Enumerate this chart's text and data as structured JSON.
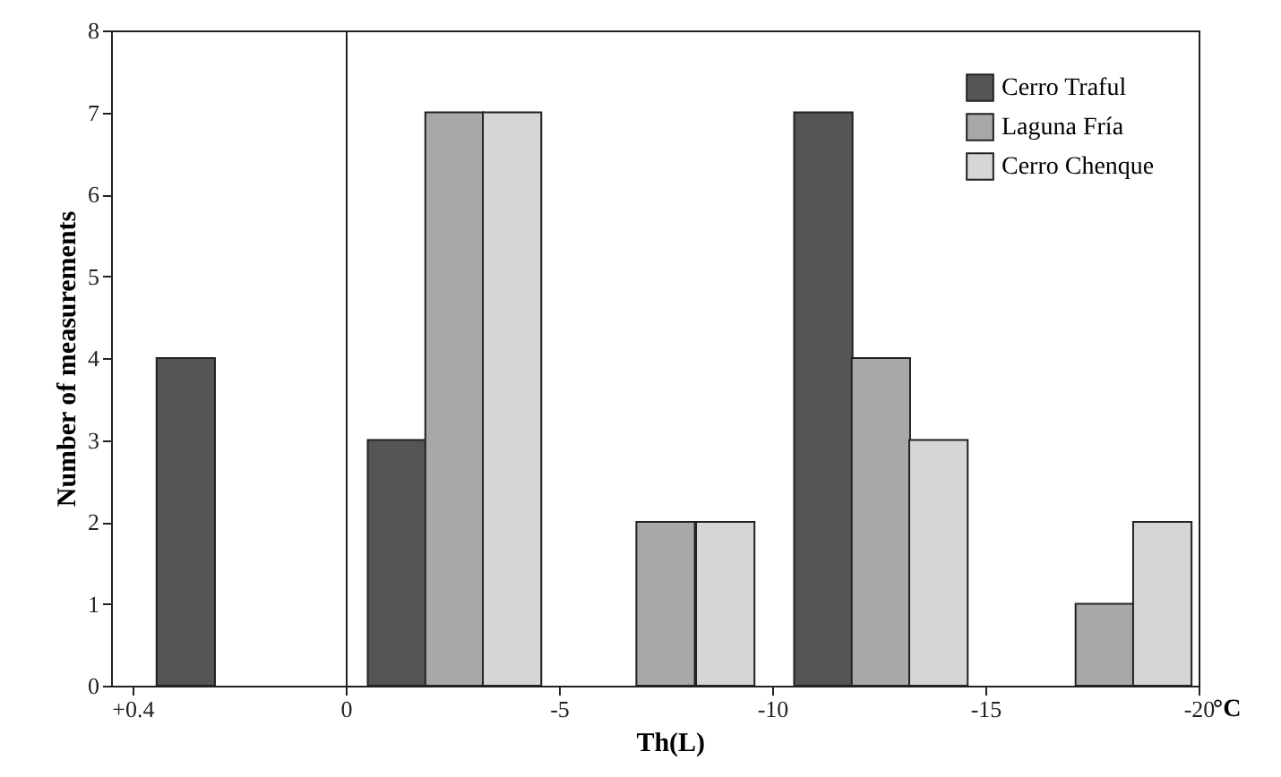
{
  "chart_data": [
    {
      "type": "bar",
      "ylabel": "Number of measurements",
      "xlim": [
        0.44,
        0
      ],
      "xticks": [
        {
          "value": 0.4,
          "label": "+0.4"
        },
        0
      ],
      "ylim": [
        0,
        8
      ],
      "yticks": [
        0,
        1,
        2,
        3,
        4,
        5,
        6,
        7,
        8
      ],
      "series": [
        {
          "color": "#555555",
          "x": [
            0.3
          ],
          "values": [
            4
          ]
        }
      ],
      "grid": false
    },
    {
      "type": "bar",
      "xlabel": "Th(L)",
      "annotations": [
        "°C"
      ],
      "xlim": [
        0,
        -20
      ],
      "xticks": [
        {
          "value": 0,
          "label": null
        },
        -5,
        -10,
        -15,
        -20
      ],
      "ylim": [
        0,
        8
      ],
      "yticks": [
        0,
        1,
        2,
        3,
        4,
        5,
        6,
        7,
        8
      ],
      "tick_labels": "x",
      "series": [
        {
          "name": "Cerro Traful",
          "color": "#555555",
          "x": [
            -1.2,
            -11.2
          ],
          "values": [
            3,
            7
          ]
        },
        {
          "name": "Laguna Fría",
          "color": "#a8a8a8",
          "x": [
            -2.55,
            -7.5,
            -12.55,
            -17.8
          ],
          "values": [
            7,
            2,
            4,
            1
          ]
        },
        {
          "name": "Cerro Chenque",
          "color": "#d6d6d6",
          "x": [
            -3.9,
            -8.9,
            -13.9,
            -19.15
          ],
          "values": [
            7,
            2,
            3,
            2
          ]
        }
      ],
      "grid": false,
      "legend": "top right"
    }
  ]
}
